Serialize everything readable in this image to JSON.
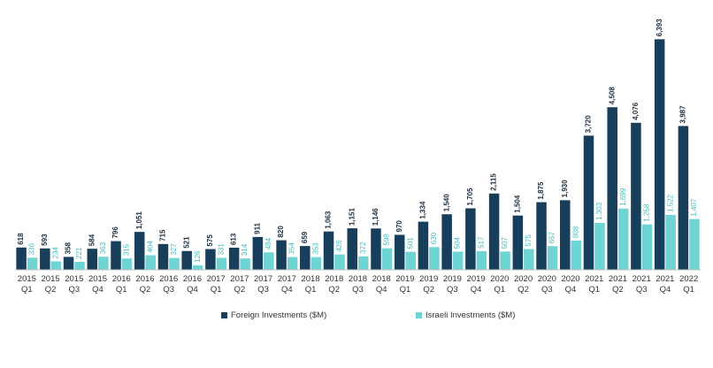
{
  "chart_data": {
    "type": "bar",
    "categories": [
      [
        "2015",
        "Q1"
      ],
      [
        "2015",
        "Q2"
      ],
      [
        "2015",
        "Q3"
      ],
      [
        "2015",
        "Q4"
      ],
      [
        "2016",
        "Q1"
      ],
      [
        "2016",
        "Q2"
      ],
      [
        "2016",
        "Q3"
      ],
      [
        "2016",
        "Q4"
      ],
      [
        "2017",
        "Q1"
      ],
      [
        "2017",
        "Q2"
      ],
      [
        "2017",
        "Q3"
      ],
      [
        "2017",
        "Q4"
      ],
      [
        "2018",
        "Q1"
      ],
      [
        "2018",
        "Q2"
      ],
      [
        "2018",
        "Q3"
      ],
      [
        "2018",
        "Q4"
      ],
      [
        "2019",
        "Q1"
      ],
      [
        "2019",
        "Q2"
      ],
      [
        "2019",
        "Q3"
      ],
      [
        "2019",
        "Q4"
      ],
      [
        "2020",
        "Q1"
      ],
      [
        "2020",
        "Q2"
      ],
      [
        "2020",
        "Q3"
      ],
      [
        "2020",
        "Q4"
      ],
      [
        "2021",
        "Q1"
      ],
      [
        "2021",
        "Q2"
      ],
      [
        "2021",
        "Q3"
      ],
      [
        "2021",
        "Q4"
      ],
      [
        "2022",
        "Q1"
      ]
    ],
    "series": [
      {
        "name": "Foreign Investments ($M)",
        "color": "#173e5a",
        "values": [
          618,
          593,
          358,
          584,
          796,
          1051,
          715,
          521,
          575,
          613,
          911,
          820,
          659,
          1063,
          1151,
          1146,
          970,
          1334,
          1540,
          1705,
          2115,
          1504,
          1875,
          1930,
          3720,
          4508,
          4076,
          6393,
          3987
        ]
      },
      {
        "name": "Israeli Investments ($M)",
        "color": "#6fd4d4",
        "values": [
          336,
          234,
          221,
          363,
          315,
          404,
          327,
          126,
          331,
          314,
          484,
          354,
          353,
          426,
          372,
          598,
          501,
          630,
          504,
          517,
          507,
          575,
          657,
          808,
          1303,
          1699,
          1258,
          1522,
          1407
        ]
      }
    ],
    "ylim": [
      0,
      6500
    ],
    "grid": false,
    "legend": "bottom-center",
    "title": "",
    "xlabel": "",
    "ylabel": ""
  }
}
